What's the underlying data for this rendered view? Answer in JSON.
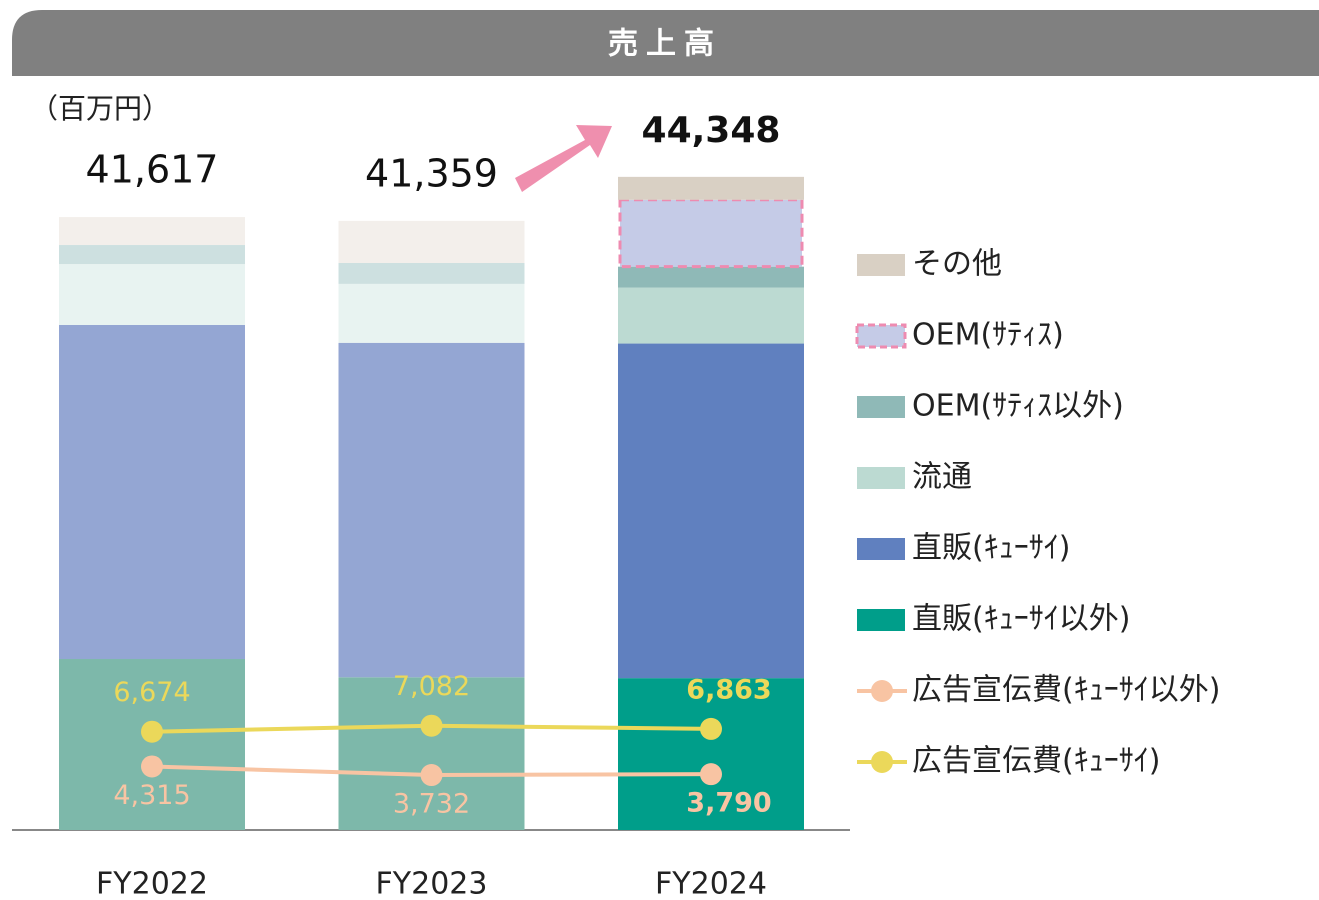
{
  "chart_data": {
    "type": "bar",
    "title": "売上高",
    "unit_label": "（百万円）",
    "categories": [
      "FY2022",
      "FY2023",
      "FY2024"
    ],
    "ylim": [
      0,
      45000
    ],
    "highlight_index": 2,
    "totals": [
      41617,
      41359,
      44348
    ],
    "totals_labels": [
      "41,617",
      "41,359",
      "44,348"
    ],
    "series": [
      {
        "name": "直販(ｷｭｰｻｲ以外)",
        "type": "bar",
        "colors": [
          "#7db8aa",
          "#7db8aa",
          "#009e8a"
        ],
        "values": [
          11610,
          10370,
          10310
        ]
      },
      {
        "name": "直販(ｷｭｰｻｲ)",
        "type": "bar",
        "colors": [
          "#94a6d3",
          "#94a6d3",
          "#6080bf"
        ],
        "values": [
          22680,
          22710,
          22720
        ]
      },
      {
        "name": "流通",
        "type": "bar",
        "colors": [
          "#e8f3f1",
          "#e8f3f1",
          "#bcdad2"
        ],
        "values": [
          4140,
          4000,
          3800
        ]
      },
      {
        "name": "OEM(ｻﾃｨｽ以外)",
        "type": "bar",
        "colors": [
          "#cde0e0",
          "#cde0e0",
          "#8fb9b7"
        ],
        "values": [
          1290,
          1420,
          1420
        ]
      },
      {
        "name": "OEM(ｻﾃｨｽ)",
        "type": "bar",
        "colors": [
          "#c5cbe7",
          "#c5cbe7",
          "#c5cbe7"
        ],
        "border": "#ee8bb0",
        "values": [
          0,
          0,
          4540
        ]
      },
      {
        "name": "その他",
        "type": "bar",
        "colors": [
          "#f3efeb",
          "#f3efeb",
          "#d9d0c4"
        ],
        "values": [
          1897,
          2859,
          1558
        ]
      },
      {
        "name": "広告宣伝費(ｷｭｰｻｲ以外)",
        "type": "line",
        "color": "#f8c4a3",
        "label_position": "below",
        "values": [
          4315,
          3732,
          3790
        ],
        "value_labels": [
          "4,315",
          "3,732",
          "3,790"
        ]
      },
      {
        "name": "広告宣伝費(ｷｭｰｻｲ)",
        "type": "line",
        "color": "#ebd85a",
        "label_position": "above",
        "values": [
          6674,
          7082,
          6863
        ],
        "value_labels": [
          "6,674",
          "7,082",
          "6,863"
        ]
      }
    ]
  }
}
